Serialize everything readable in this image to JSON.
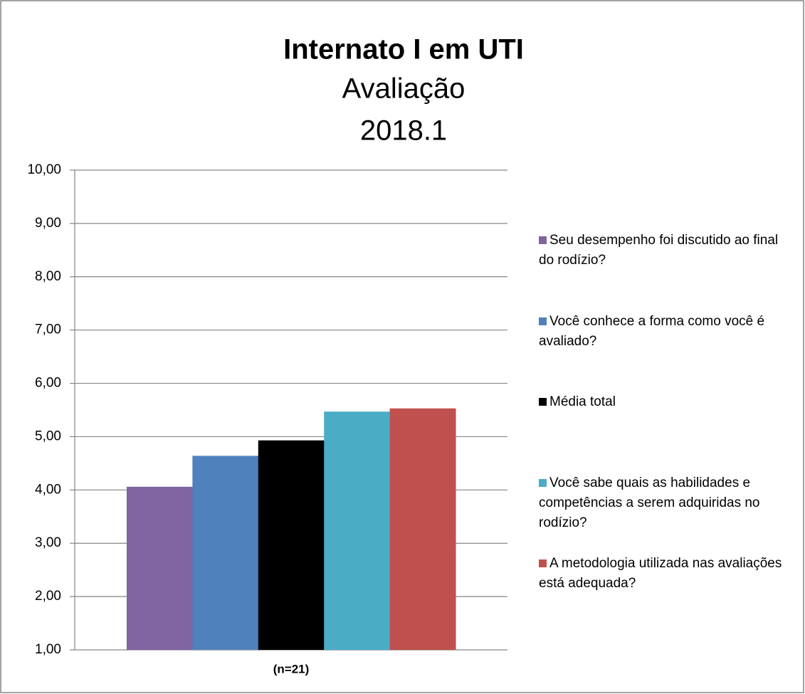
{
  "chart_data": {
    "type": "bar",
    "title": "Internato I em UTI",
    "subtitle": [
      "Avaliação",
      "2018.1"
    ],
    "categories": [
      "(n=21)"
    ],
    "series": [
      {
        "name": "Seu desempenho foi discutido ao final do rodízio?",
        "color": "#8064a2",
        "values": [
          4.06
        ]
      },
      {
        "name": "Você conhece a forma como você é avaliado?",
        "color": "#4f81bd",
        "values": [
          4.64
        ]
      },
      {
        "name": "Média total",
        "color": "#000000",
        "values": [
          4.93
        ]
      },
      {
        "name": "Você sabe quais as  habilidades e competências a serem adquiridas no rodízio?",
        "color": "#4bacc6",
        "values": [
          5.47
        ]
      },
      {
        "name": "A metodologia utilizada nas avaliações está adequada?",
        "color": "#c0504d",
        "values": [
          5.53
        ]
      }
    ],
    "ylim": [
      1,
      10
    ],
    "yticks": [
      {
        "value": 1,
        "label": "1,00"
      },
      {
        "value": 2,
        "label": "2,00"
      },
      {
        "value": 3,
        "label": "3,00"
      },
      {
        "value": 4,
        "label": "4,00"
      },
      {
        "value": 5,
        "label": "5,00"
      },
      {
        "value": 6,
        "label": "6,00"
      },
      {
        "value": 7,
        "label": "7,00"
      },
      {
        "value": 8,
        "label": "8,00"
      },
      {
        "value": 9,
        "label": "9,00"
      },
      {
        "value": 10,
        "label": "10,00"
      }
    ],
    "grid": true,
    "legend": "right"
  }
}
